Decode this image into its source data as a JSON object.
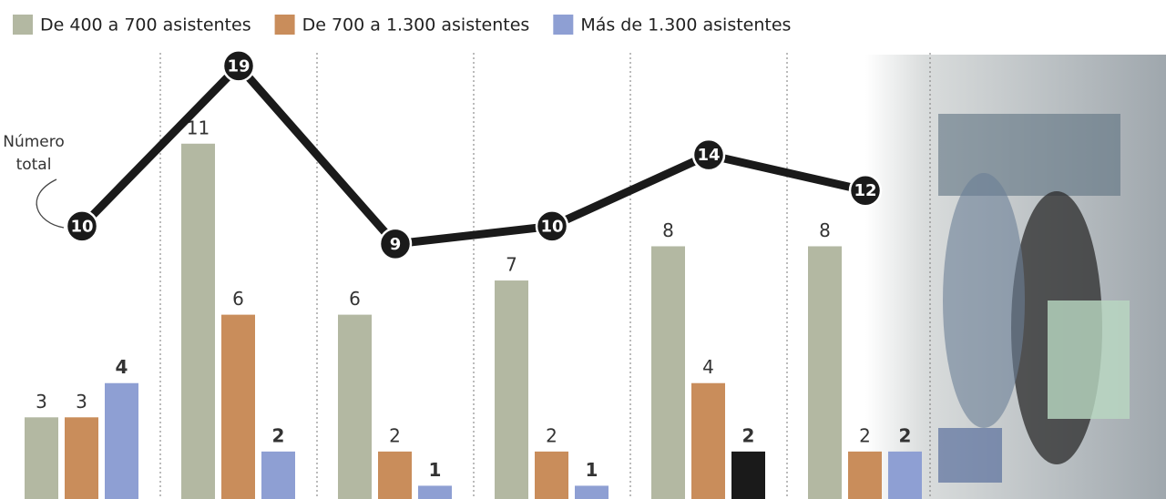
{
  "chart_data": {
    "type": "bar",
    "categories": [
      null,
      null,
      null,
      null,
      null,
      null
    ],
    "series": [
      {
        "name": "De 400 a 700 asistentes",
        "color": "#b3b8a2",
        "values": [
          3,
          11,
          6,
          7,
          8,
          8
        ]
      },
      {
        "name": "De 700 a 1.300 asistentes",
        "color": "#c98d5b",
        "values": [
          3,
          6,
          2,
          2,
          4,
          2
        ]
      },
      {
        "name": "Más de 1.300 asistentes",
        "color": "#8e9fd3",
        "colors": [
          "#8e9fd3",
          "#8e9fd3",
          "#8e9fd3",
          "#8e9fd3",
          "#1a1a1a",
          "#8e9fd3"
        ],
        "values": [
          4,
          2,
          1,
          1,
          2,
          2
        ]
      },
      {
        "name": "Número total",
        "type": "line",
        "axis": "y2",
        "color": "#1a1a1a",
        "values": [
          10,
          19,
          9,
          10,
          14,
          12
        ]
      }
    ],
    "annotation": "Número total",
    "ylim": [
      0,
      15.2
    ],
    "y2lim": [
      -6.5,
      22.7
    ]
  }
}
